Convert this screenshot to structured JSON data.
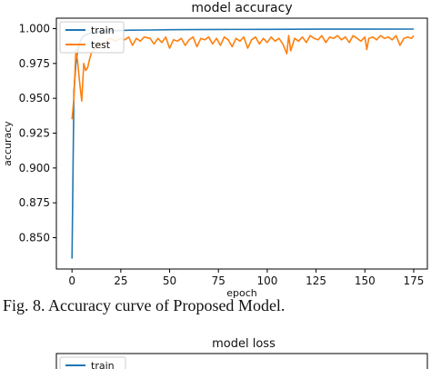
{
  "caption": "Fig. 8. Accuracy curve of  Proposed Model.",
  "chart_data": [
    {
      "type": "line",
      "title": "model accuracy",
      "xlabel": "epoch",
      "ylabel": "accuracy",
      "xlim": [
        -8,
        182
      ],
      "ylim": [
        0.8275,
        1.0075
      ],
      "xticks": [
        0,
        25,
        50,
        75,
        100,
        125,
        150,
        175
      ],
      "yticks": [
        0.85,
        0.875,
        0.9,
        0.925,
        0.95,
        0.975,
        1.0
      ],
      "ytick_labels": [
        "0.850",
        "0.875",
        "0.900",
        "0.925",
        "0.950",
        "0.975",
        "1.000"
      ],
      "grid": false,
      "legend": "top-left",
      "series": [
        {
          "name": "train",
          "color": "#1f77b4",
          "x": [
            0,
            1,
            2,
            3,
            4,
            5,
            6,
            8,
            10,
            12,
            15,
            20,
            25,
            30,
            40,
            50,
            60,
            75,
            100,
            125,
            150,
            175
          ],
          "y": [
            0.835,
            0.955,
            0.975,
            0.985,
            0.99,
            0.993,
            0.995,
            0.996,
            0.997,
            0.9975,
            0.998,
            0.9985,
            0.9987,
            0.9989,
            0.999,
            0.9992,
            0.9993,
            0.9994,
            0.9995,
            0.9996,
            0.9996,
            0.9997
          ]
        },
        {
          "name": "test",
          "color": "#ff7f0e",
          "x": [
            0,
            1,
            2,
            3,
            4,
            5,
            6,
            7,
            8,
            9,
            10,
            12,
            14,
            16,
            18,
            20,
            22,
            25,
            27,
            29,
            31,
            33,
            35,
            37,
            40,
            42,
            44,
            46,
            48,
            50,
            52,
            54,
            56,
            58,
            60,
            62,
            64,
            66,
            68,
            70,
            72,
            74,
            76,
            78,
            80,
            82,
            84,
            86,
            88,
            90,
            92,
            94,
            96,
            98,
            100,
            102,
            104,
            106,
            108,
            110,
            111,
            112,
            114,
            116,
            118,
            120,
            122,
            124,
            126,
            128,
            130,
            132,
            134,
            136,
            138,
            140,
            142,
            144,
            146,
            148,
            150,
            151,
            152,
            154,
            156,
            158,
            160,
            162,
            164,
            166,
            168,
            170,
            172,
            174,
            175
          ],
          "y": [
            0.935,
            0.95,
            0.985,
            0.975,
            0.96,
            0.948,
            0.975,
            0.97,
            0.972,
            0.978,
            0.983,
            0.986,
            0.99,
            0.988,
            0.992,
            0.993,
            0.991,
            0.993,
            0.992,
            0.994,
            0.988,
            0.993,
            0.991,
            0.994,
            0.993,
            0.989,
            0.993,
            0.99,
            0.994,
            0.986,
            0.992,
            0.991,
            0.993,
            0.988,
            0.992,
            0.994,
            0.987,
            0.993,
            0.992,
            0.994,
            0.989,
            0.993,
            0.988,
            0.994,
            0.992,
            0.987,
            0.993,
            0.991,
            0.994,
            0.986,
            0.992,
            0.994,
            0.989,
            0.993,
            0.99,
            0.994,
            0.991,
            0.993,
            0.989,
            0.982,
            0.995,
            0.984,
            0.993,
            0.991,
            0.994,
            0.99,
            0.995,
            0.993,
            0.992,
            0.995,
            0.99,
            0.994,
            0.993,
            0.995,
            0.992,
            0.994,
            0.99,
            0.995,
            0.993,
            0.991,
            0.994,
            0.985,
            0.993,
            0.994,
            0.992,
            0.995,
            0.993,
            0.994,
            0.992,
            0.995,
            0.988,
            0.993,
            0.994,
            0.993,
            0.995
          ]
        }
      ]
    },
    {
      "type": "line",
      "title": "model loss",
      "legend": "top-left",
      "series": [
        {
          "name": "train",
          "color": "#1f77b4"
        }
      ]
    }
  ]
}
